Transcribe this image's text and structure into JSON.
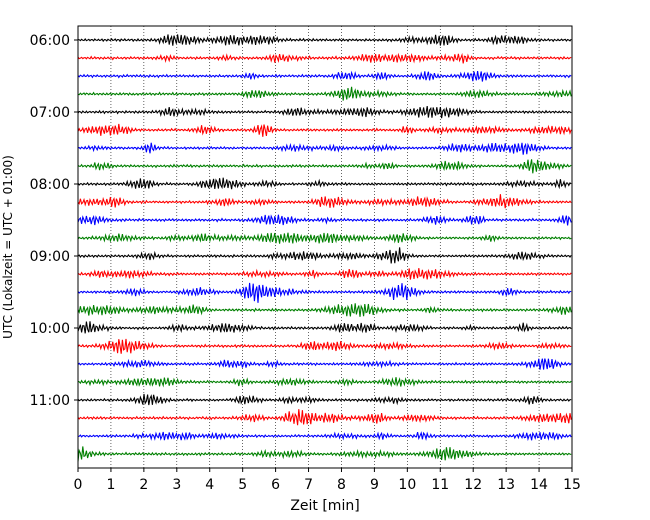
{
  "chart_data": {
    "type": "line",
    "title": "",
    "xlabel": "Zeit  [min]",
    "ylabel": "UTC (Lokalzeit = UTC + 01:00)",
    "xlim": [
      0,
      15
    ],
    "x_ticks": [
      "0",
      "1",
      "2",
      "3",
      "4",
      "5",
      "6",
      "7",
      "8",
      "9",
      "10",
      "11",
      "12",
      "13",
      "14",
      "15"
    ],
    "y_ticks": [
      "06:00",
      "07:00",
      "08:00",
      "09:00",
      "10:00",
      "11:00"
    ],
    "trace_interval_minutes": 15,
    "start_time": "06:00",
    "trace_count": 24,
    "trace_colors": [
      "#000000",
      "#ff0000",
      "#0000ff",
      "#008000"
    ],
    "x_grid": "dotted vertical lines at each minute"
  }
}
